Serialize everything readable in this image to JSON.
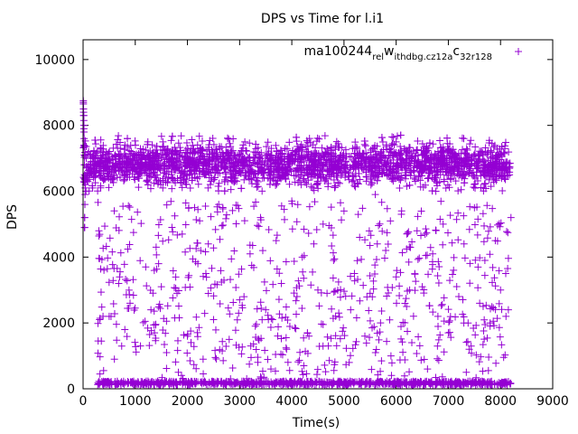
{
  "chart_data": {
    "type": "scatter",
    "title": "DPS vs Time for l.i1",
    "xlabel": "Time(s)",
    "ylabel": "DPS",
    "xlim": [
      0,
      9000
    ],
    "ylim": [
      0,
      10600
    ],
    "x_ticks": [
      "0",
      "1000",
      "2000",
      "3000",
      "4000",
      "5000",
      "6000",
      "7000",
      "8000",
      "9000"
    ],
    "y_ticks": [
      "0",
      "2000",
      "4000",
      "6000",
      "8000",
      "10000"
    ],
    "x_tick_values": [
      0,
      1000,
      2000,
      3000,
      4000,
      5000,
      6000,
      7000,
      8000,
      9000
    ],
    "y_tick_values": [
      0,
      2000,
      4000,
      6000,
      8000,
      10000
    ],
    "grid": false,
    "legend_position": "top-right",
    "marker": "plus",
    "color": "#9400d3",
    "series": [
      {
        "name_parts": [
          "ma100244",
          "rel",
          "w",
          "ithdbg.cz12a",
          "c",
          "32r128"
        ],
        "x_range": [
          0,
          8200
        ],
        "description_points": [
          [
            5,
            8700
          ],
          [
            8,
            8500
          ],
          [
            12,
            8300
          ],
          [
            15,
            7900
          ],
          [
            20,
            7400
          ],
          [
            25,
            4900
          ],
          [
            30,
            5200
          ],
          [
            40,
            6100
          ],
          [
            60,
            7000
          ],
          [
            100,
            6800
          ],
          [
            150,
            6900
          ],
          [
            200,
            7100
          ],
          [
            250,
            6600
          ],
          [
            300,
            150
          ],
          [
            350,
            1450
          ],
          [
            400,
            3600
          ],
          [
            450,
            6700
          ],
          [
            500,
            2200
          ],
          [
            600,
            900
          ],
          [
            700,
            3400
          ],
          [
            800,
            1800
          ],
          [
            900,
            2600
          ],
          [
            1000,
            6800
          ],
          [
            1100,
            1300
          ],
          [
            1200,
            3700
          ],
          [
            1300,
            2400
          ],
          [
            1400,
            4300
          ],
          [
            1500,
            3100
          ],
          [
            1600,
            1100
          ],
          [
            1700,
            6500
          ],
          [
            1800,
            2900
          ],
          [
            1900,
            4700
          ],
          [
            2000,
            1600
          ],
          [
            2100,
            6900
          ],
          [
            2200,
            3800
          ],
          [
            2300,
            900
          ],
          [
            2400,
            4400
          ],
          [
            2500,
            2100
          ],
          [
            2600,
            5600
          ],
          [
            2700,
            3300
          ],
          [
            2800,
            1500
          ],
          [
            2900,
            6300
          ],
          [
            3000,
            2700
          ],
          [
            3100,
            7500
          ],
          [
            3200,
            4100
          ],
          [
            3300,
            1900
          ],
          [
            3400,
            5200
          ],
          [
            3500,
            2400
          ],
          [
            3600,
            600
          ],
          [
            3700,
            4500
          ],
          [
            3800,
            3200
          ],
          [
            3900,
            1200
          ],
          [
            4000,
            5700
          ],
          [
            4100,
            2800
          ],
          [
            4200,
            4000
          ],
          [
            4300,
            1700
          ],
          [
            4400,
            6100
          ],
          [
            4500,
            3000
          ],
          [
            4600,
            5000
          ],
          [
            4700,
            1300
          ],
          [
            4800,
            3900
          ],
          [
            4900,
            2300
          ],
          [
            5000,
            5400
          ],
          [
            5100,
            800
          ],
          [
            5200,
            3500
          ],
          [
            5300,
            4600
          ],
          [
            5400,
            1600
          ],
          [
            5500,
            2900
          ],
          [
            5600,
            5900
          ],
          [
            5700,
            2000
          ],
          [
            5800,
            4200
          ],
          [
            5900,
            1000
          ],
          [
            6000,
            3400
          ],
          [
            6100,
            5300
          ],
          [
            6200,
            2500
          ],
          [
            6300,
            1400
          ],
          [
            6400,
            4800
          ],
          [
            6500,
            3100
          ],
          [
            6600,
            600
          ],
          [
            6700,
            4100
          ],
          [
            6800,
            2200
          ],
          [
            6900,
            5000
          ],
          [
            7000,
            1700
          ],
          [
            7100,
            3600
          ],
          [
            7200,
            2800
          ],
          [
            7300,
            4400
          ],
          [
            7400,
            1200
          ],
          [
            7500,
            5500
          ],
          [
            7600,
            2600
          ],
          [
            7700,
            3900
          ],
          [
            7800,
            1900
          ],
          [
            7900,
            4500
          ],
          [
            8000,
            3000
          ],
          [
            8100,
            3500
          ],
          [
            8150,
            2400
          ],
          [
            8200,
            5200
          ]
        ]
      }
    ]
  }
}
